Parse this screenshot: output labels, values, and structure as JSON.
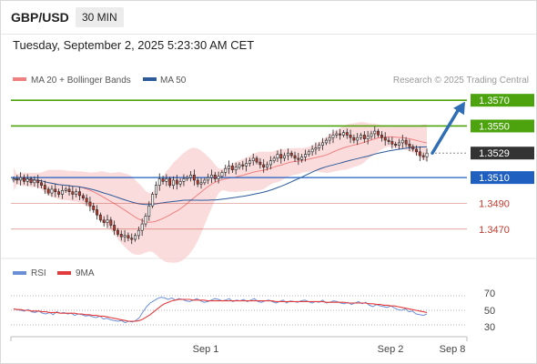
{
  "header": {
    "symbol": "GBP/USD",
    "timeframe": "30 MIN",
    "timestamp": "Tuesday, September 2, 2025 5:23:30 AM CET"
  },
  "colors": {
    "green": "#4ca30d",
    "blue_level": "#1f5fbf",
    "red_level": "#c0392b",
    "current": "#333333",
    "candle_up": "#ffffff",
    "candle_down": "#c0392b",
    "ma20": "#f08080",
    "bollinger": "#f9d0d0",
    "ma50": "#2c5a9a",
    "rsi": "#6b8fd6",
    "rsi_ma": "#e33b3b",
    "arrow": "#2f6db5"
  },
  "chart_data": [
    {
      "type": "candlestick",
      "legend": [
        {
          "label": "MA 20 + Bollinger Bands",
          "color": "#f08080"
        },
        {
          "label": "MA 50",
          "color": "#2c5a9a"
        }
      ],
      "credit": "Research © 2025 Trading Central",
      "ylim": [
        1.3455,
        1.358
      ],
      "x_ticks": [
        "Sep 1",
        "Sep 2",
        "Sep 8"
      ],
      "levels": [
        {
          "label": "1.3570",
          "value": 1.357,
          "kind": "resistance"
        },
        {
          "label": "1.3550",
          "value": 1.355,
          "kind": "resistance"
        },
        {
          "label": "1.3529",
          "value": 1.3529,
          "kind": "current"
        },
        {
          "label": "1.3510",
          "value": 1.351,
          "kind": "pivot"
        },
        {
          "label": "1.3490",
          "value": 1.349,
          "kind": "support"
        },
        {
          "label": "1.3470",
          "value": 1.347,
          "kind": "support"
        }
      ],
      "projection": {
        "from": 1.3529,
        "to": 1.3569
      },
      "closes": [
        1.3509,
        1.3508,
        1.351,
        1.3507,
        1.3509,
        1.3506,
        1.3508,
        1.3506,
        1.3504,
        1.3501,
        1.3498,
        1.3501,
        1.3499,
        1.3497,
        1.35,
        1.3501,
        1.3499,
        1.3497,
        1.3499,
        1.3496,
        1.3494,
        1.3491,
        1.3488,
        1.3485,
        1.3481,
        1.3477,
        1.3475,
        1.3477,
        1.3473,
        1.3469,
        1.3466,
        1.3464,
        1.3465,
        1.3463,
        1.3462,
        1.3465,
        1.3469,
        1.3474,
        1.348,
        1.3488,
        1.3497,
        1.3504,
        1.3509,
        1.3507,
        1.3509,
        1.3504,
        1.3508,
        1.3505,
        1.3507,
        1.3509,
        1.351,
        1.3512,
        1.3508,
        1.3505,
        1.3506,
        1.3508,
        1.351,
        1.3512,
        1.3509,
        1.3511,
        1.3514,
        1.3517,
        1.3519,
        1.3516,
        1.3518,
        1.352,
        1.3519,
        1.3521,
        1.3523,
        1.3525,
        1.3522,
        1.352,
        1.3518,
        1.352,
        1.3523,
        1.3525,
        1.3528,
        1.3525,
        1.3527,
        1.3529,
        1.3527,
        1.3525,
        1.3524,
        1.3526,
        1.3528,
        1.353,
        1.3532,
        1.3533,
        1.3535,
        1.3537,
        1.3539,
        1.3541,
        1.3543,
        1.3544,
        1.3543,
        1.3545,
        1.3543,
        1.3541,
        1.3539,
        1.3541,
        1.3543,
        1.354,
        1.3542,
        1.3544,
        1.3546,
        1.3543,
        1.3541,
        1.3539,
        1.3538,
        1.3536,
        1.3535,
        1.3537,
        1.3539,
        1.3536,
        1.3534,
        1.3532,
        1.353,
        1.3527,
        1.3526,
        1.3529
      ]
    },
    {
      "type": "line",
      "legend": [
        {
          "label": "RSI",
          "color": "#6b8fd6"
        },
        {
          "label": "9MA",
          "color": "#e33b3b"
        }
      ],
      "ylim": [
        20,
        80
      ],
      "y_ticks": [
        "70",
        "50",
        "30"
      ],
      "rsi": [
        52,
        51,
        50,
        49,
        51,
        48,
        47,
        49,
        46,
        45,
        47,
        44,
        48,
        46,
        47,
        45,
        46,
        43,
        45,
        44,
        42,
        43,
        41,
        40,
        42,
        38,
        39,
        37,
        36,
        35,
        36,
        33,
        35,
        34,
        36,
        40,
        48,
        55,
        60,
        63,
        66,
        68,
        67,
        65,
        67,
        64,
        66,
        65,
        63,
        62,
        64,
        66,
        63,
        61,
        62,
        64,
        66,
        65,
        63,
        64,
        66,
        62,
        64,
        63,
        65,
        62,
        64,
        66,
        62,
        61,
        63,
        64,
        62,
        60,
        62,
        64,
        60,
        63,
        62,
        61,
        63,
        64,
        62,
        60,
        62,
        61,
        64,
        60,
        61,
        63,
        62,
        60,
        59,
        61,
        58,
        60,
        62,
        59,
        61,
        57,
        55,
        58,
        56,
        55,
        54,
        56,
        53,
        51,
        50,
        52,
        48,
        49,
        45,
        44,
        43,
        45
      ],
      "ma9": [
        52,
        51,
        51,
        50,
        50,
        49,
        49,
        49,
        48,
        48,
        47,
        47,
        47,
        46,
        46,
        46,
        46,
        46,
        45,
        45,
        44,
        44,
        43,
        43,
        42,
        42,
        41,
        40,
        39,
        38,
        37,
        36,
        35,
        35,
        35,
        36,
        38,
        41,
        44,
        48,
        52,
        56,
        59,
        61,
        63,
        64,
        65,
        65,
        65,
        65,
        64,
        64,
        64,
        64,
        63,
        63,
        63,
        63,
        63,
        63,
        63,
        63,
        63,
        63,
        63,
        63,
        63,
        63,
        63,
        63,
        63,
        63,
        63,
        62,
        62,
        62,
        62,
        62,
        62,
        62,
        62,
        62,
        62,
        62,
        62,
        62,
        62,
        61,
        61,
        61,
        61,
        61,
        61,
        60,
        60,
        60,
        60,
        60,
        60,
        59,
        59,
        58,
        58,
        57,
        57,
        56,
        56,
        55,
        54,
        53,
        52,
        51,
        50,
        49,
        48,
        47
      ]
    }
  ]
}
